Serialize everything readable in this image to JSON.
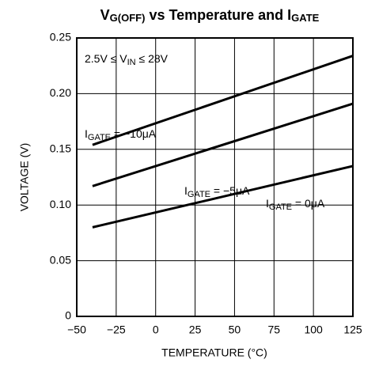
{
  "chart_data": {
    "type": "line",
    "title": [
      "V",
      "G(OFF)",
      " vs Temperature and I",
      "GATE"
    ],
    "x_label": "TEMPERATURE (°C)",
    "y_label": "VOLTAGE (V)",
    "annotation": [
      "2.5V ≤ V",
      "IN",
      " ≤ 28V"
    ],
    "x": [
      -40,
      125
    ],
    "series": [
      {
        "name": [
          "I",
          "GATE",
          " = −10μA"
        ],
        "color": "#000000",
        "values": [
          0.154,
          0.234
        ]
      },
      {
        "name": [
          "I",
          "GATE",
          " = −5μA"
        ],
        "color": "#000000",
        "values": [
          0.117,
          0.191
        ]
      },
      {
        "name": [
          "I",
          "GATE",
          " = 0μA"
        ],
        "color": "#000000",
        "values": [
          0.08,
          0.135
        ]
      }
    ],
    "xlim": [
      -50,
      125
    ],
    "xticks": [
      {
        "value": -50,
        "label": "−50"
      },
      {
        "value": -25,
        "label": "−25"
      },
      0,
      25,
      50,
      75,
      100,
      125
    ],
    "ylim": [
      0,
      0.25
    ],
    "yticks": [
      0,
      0.05,
      {
        "value": 0.1,
        "label": "0.10"
      },
      0.15,
      {
        "value": 0.2,
        "label": "0.20"
      },
      0.25
    ],
    "grid": true
  }
}
